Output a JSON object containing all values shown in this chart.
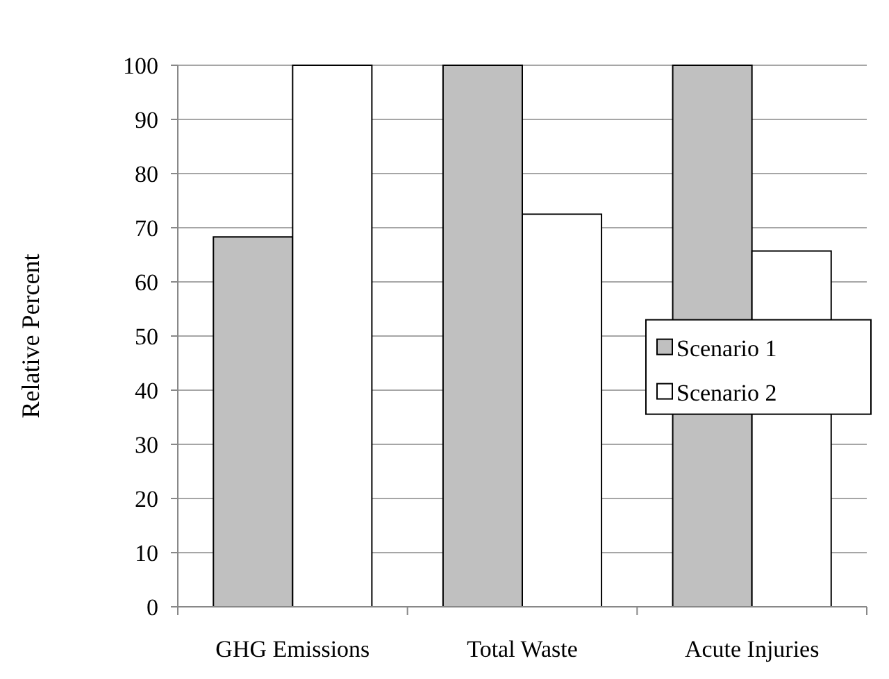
{
  "chart_data": {
    "type": "bar",
    "ylabel": "Relative Percent",
    "categories": [
      "GHG Emissions",
      "Total Waste",
      "Acute Injuries"
    ],
    "series": [
      {
        "name": "Scenario 1",
        "color": "#c0c0c0",
        "values": [
          68.3,
          100,
          100
        ]
      },
      {
        "name": "Scenario 2",
        "color": "#ffffff",
        "values": [
          100,
          72.5,
          65.7
        ]
      }
    ],
    "ylim": [
      0,
      100
    ],
    "yticks": [
      0,
      10,
      20,
      30,
      40,
      50,
      60,
      70,
      80,
      90,
      100
    ],
    "grid": "y",
    "legend": "right"
  }
}
